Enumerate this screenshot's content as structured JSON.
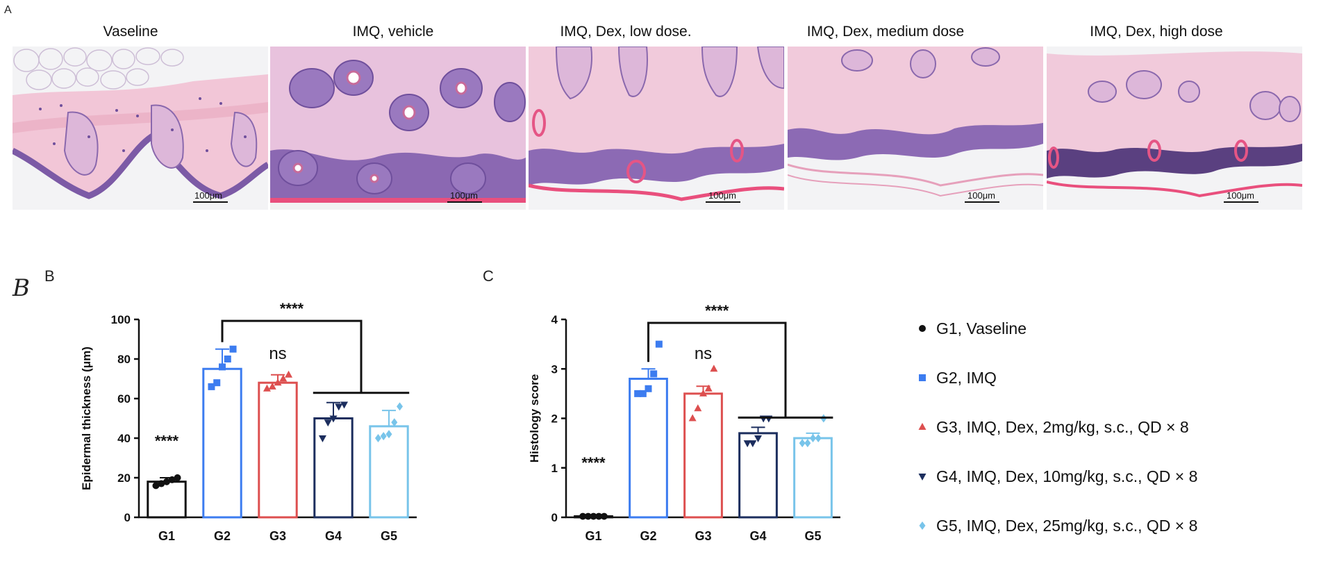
{
  "panel_letters": {
    "a": "A",
    "b_script": "B",
    "b": "B",
    "c": "C"
  },
  "histology": {
    "panels": [
      {
        "title": "Vaseline",
        "scale": "100μm",
        "style": "vaseline"
      },
      {
        "title": "IMQ, vehicle",
        "scale": "100μm",
        "style": "vehicle"
      },
      {
        "title": "IMQ, Dex, low dose.",
        "scale": "100μm",
        "style": "low"
      },
      {
        "title": "IMQ, Dex,  medium dose",
        "scale": "100μm",
        "style": "medium"
      },
      {
        "title": "IMQ, Dex,  high dose",
        "scale": "100μm",
        "style": "high"
      }
    ]
  },
  "colors": {
    "G1": "#111111",
    "G2": "#3c7cf0",
    "G3": "#dd4f4f",
    "G4": "#1c2e5e",
    "G5": "#78c4ea",
    "tissue_pink": "#f0c4d6",
    "nuclei_purple": "#6f4f9c"
  },
  "legend": [
    {
      "label": "G1, Vaseline",
      "marker": "circle",
      "color": "#111111"
    },
    {
      "label": "G2, IMQ",
      "marker": "square",
      "color": "#3c7cf0"
    },
    {
      "label": "G3, IMQ, Dex, 2mg/kg, s.c., QD × 8",
      "marker": "triangle-up",
      "color": "#dd4f4f"
    },
    {
      "label": "G4, IMQ, Dex, 10mg/kg, s.c., QD × 8",
      "marker": "triangle-down",
      "color": "#1c2e5e"
    },
    {
      "label": "G5, IMQ, Dex, 25mg/kg, s.c., QD × 8",
      "marker": "diamond",
      "color": "#78c4ea"
    }
  ],
  "chart_data": [
    {
      "type": "bar",
      "panel": "B",
      "ylabel": "Epidermal thickness (μm)",
      "xlabel": "",
      "categories": [
        "G1",
        "G2",
        "G3",
        "G4",
        "G5"
      ],
      "ylim": [
        0,
        100
      ],
      "yticks": [
        0,
        20,
        40,
        60,
        80,
        100
      ],
      "means": [
        18,
        75,
        68,
        50,
        46
      ],
      "errors": [
        2,
        10,
        4,
        8,
        8
      ],
      "points": [
        [
          16,
          17,
          18,
          19,
          20
        ],
        [
          66,
          68,
          76,
          80,
          85
        ],
        [
          65,
          66,
          68,
          70,
          72
        ],
        [
          40,
          48,
          50,
          56,
          57
        ],
        [
          40,
          41,
          42,
          48,
          56
        ]
      ],
      "markers": [
        "circle",
        "square",
        "triangle-up",
        "triangle-down",
        "diamond"
      ],
      "annotations": [
        {
          "text": "****",
          "category": "G1",
          "y": 36
        },
        {
          "text": "ns",
          "category": "G3",
          "y": 80
        },
        {
          "text": "****",
          "bracket": [
            "G2",
            [
              "G4",
              "G5"
            ]
          ],
          "y": 101
        }
      ],
      "grid": false
    },
    {
      "type": "bar",
      "panel": "C",
      "ylabel": "Histology score",
      "xlabel": "",
      "categories": [
        "G1",
        "G2",
        "G3",
        "G4",
        "G5"
      ],
      "ylim": [
        0,
        4
      ],
      "yticks": [
        0,
        1,
        2,
        3,
        4
      ],
      "means": [
        0.02,
        2.8,
        2.5,
        1.7,
        1.6
      ],
      "errors": [
        0,
        0.2,
        0.15,
        0.12,
        0.1
      ],
      "points": [
        [
          0.02,
          0.02,
          0.02,
          0.02,
          0.02
        ],
        [
          2.5,
          2.5,
          2.6,
          2.9,
          3.5
        ],
        [
          2.0,
          2.2,
          2.5,
          2.6,
          3.0
        ],
        [
          1.5,
          1.5,
          1.6,
          2.0,
          2.0
        ],
        [
          1.5,
          1.5,
          1.6,
          1.6,
          2.0
        ]
      ],
      "markers": [
        "circle",
        "square",
        "triangle-up",
        "triangle-down",
        "diamond"
      ],
      "annotations": [
        {
          "text": "****",
          "category": "G1",
          "y": 1.0
        },
        {
          "text": "ns",
          "category": "G3",
          "y": 3.2
        },
        {
          "text": "****",
          "bracket": [
            "G2",
            [
              "G4",
              "G5"
            ]
          ],
          "y": 4.0
        }
      ],
      "grid": false
    }
  ]
}
